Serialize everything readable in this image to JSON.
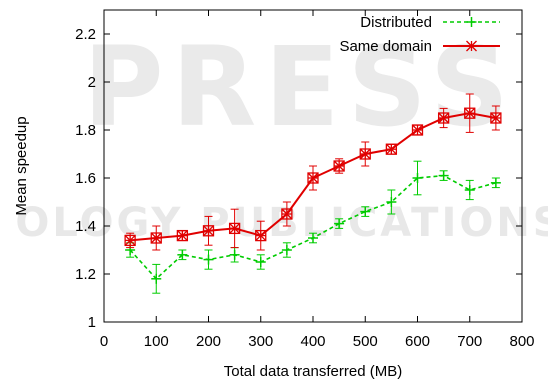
{
  "chart_data": {
    "type": "line",
    "xlabel": "Total data transferred (MB)",
    "ylabel": "Mean speedup",
    "xlim": [
      0,
      800
    ],
    "ylim": [
      1,
      2.3
    ],
    "xticks": [
      0,
      100,
      200,
      300,
      400,
      500,
      600,
      700,
      800
    ],
    "yticks": [
      1,
      1.2,
      1.4,
      1.6,
      1.8,
      2,
      2.2
    ],
    "xtick_labels": [
      "0",
      "100",
      "200",
      "300",
      "400",
      "500",
      "600",
      "700",
      "800"
    ],
    "ytick_labels": [
      "1",
      "1.2",
      "1.4",
      "1.6",
      "1.8",
      "2",
      "2.2"
    ],
    "grid": false,
    "legend_position": "top-right",
    "series": [
      {
        "name": "Distributed",
        "color": "#00cc00",
        "line_style": "dashed",
        "marker": "plus",
        "x": [
          50,
          100,
          150,
          200,
          250,
          300,
          350,
          400,
          450,
          500,
          550,
          600,
          650,
          700,
          750
        ],
        "y": [
          1.3,
          1.18,
          1.28,
          1.26,
          1.28,
          1.25,
          1.3,
          1.35,
          1.41,
          1.46,
          1.5,
          1.6,
          1.61,
          1.55,
          1.58
        ],
        "err": [
          0.03,
          0.06,
          0.02,
          0.04,
          0.03,
          0.03,
          0.03,
          0.02,
          0.02,
          0.02,
          0.05,
          0.07,
          0.02,
          0.04,
          0.02
        ]
      },
      {
        "name": "Same domain",
        "color": "#e00000",
        "line_style": "solid",
        "marker": "boxed-asterisk",
        "x": [
          50,
          100,
          150,
          200,
          250,
          300,
          350,
          400,
          450,
          500,
          550,
          600,
          650,
          700,
          750
        ],
        "y": [
          1.34,
          1.35,
          1.36,
          1.38,
          1.39,
          1.36,
          1.45,
          1.6,
          1.65,
          1.7,
          1.72,
          1.8,
          1.85,
          1.87,
          1.85
        ],
        "err": [
          0.03,
          0.05,
          0.02,
          0.06,
          0.08,
          0.06,
          0.05,
          0.05,
          0.03,
          0.05,
          0.02,
          0.02,
          0.04,
          0.08,
          0.05
        ]
      }
    ]
  },
  "watermark": {
    "line1": "PRESS",
    "line2": "OLOGY PUBLICATIONS",
    "color": "#e6e6e6"
  }
}
